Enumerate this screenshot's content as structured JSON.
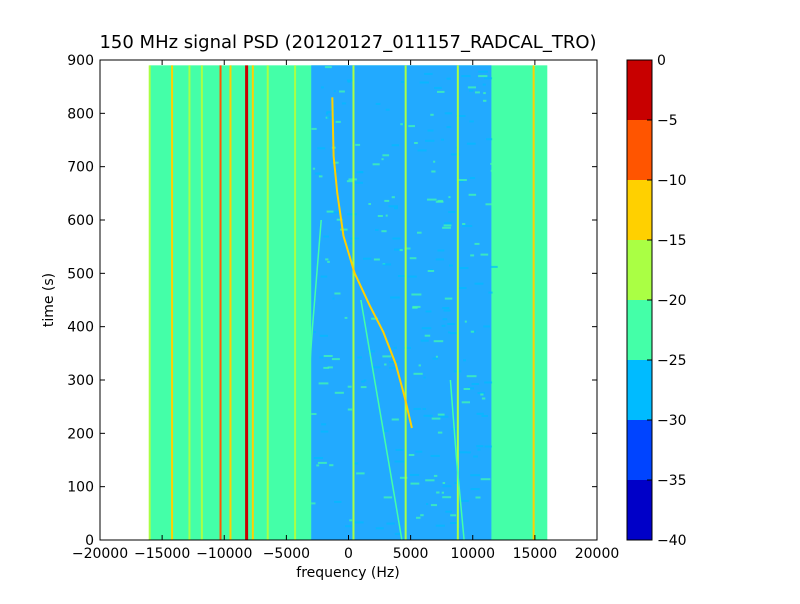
{
  "chart_data": {
    "type": "heatmap",
    "title": "150 MHz signal PSD (20120127_011157_RADCAL_TRO)",
    "xlabel": "frequency (Hz)",
    "ylabel": "time (s)",
    "xlim": [
      -20000,
      20000
    ],
    "ylim": [
      0,
      900
    ],
    "data_extent": {
      "x": [
        -16000,
        16000
      ],
      "y": [
        0,
        890
      ]
    },
    "xticks": [
      -20000,
      -15000,
      -10000,
      -5000,
      0,
      5000,
      10000,
      15000,
      20000
    ],
    "xtick_labels": [
      "−20000",
      "−15000",
      "−10000",
      "−5000",
      "0",
      "5000",
      "10000",
      "15000",
      "20000"
    ],
    "yticks": [
      0,
      100,
      200,
      300,
      400,
      500,
      600,
      700,
      800,
      900
    ],
    "ytick_labels": [
      "0",
      "100",
      "200",
      "300",
      "400",
      "500",
      "600",
      "700",
      "800",
      "900"
    ],
    "colorbar": {
      "levels": [
        -40,
        -35,
        -30,
        -25,
        -20,
        -15,
        -10,
        -5,
        0
      ],
      "tick_labels": [
        "−40",
        "−35",
        "−30",
        "−25",
        "−20",
        "−15",
        "−10",
        "−5",
        "0"
      ],
      "colors": [
        "#0000c8",
        "#0044ff",
        "#00bbff",
        "#44ffa8",
        "#aaff44",
        "#ffd000",
        "#ff5500",
        "#c80000"
      ]
    },
    "background_level_color": "#44ffa8",
    "quiet_band": {
      "x": [
        -3000,
        11500
      ],
      "color": "#22aaff"
    },
    "persistent_lines": [
      {
        "x": -16000,
        "color": "#aaff44"
      },
      {
        "x": -14200,
        "color": "#ffd000"
      },
      {
        "x": -12800,
        "color": "#aaff44"
      },
      {
        "x": -11800,
        "color": "#aaff44"
      },
      {
        "x": -10300,
        "color": "#ff5500"
      },
      {
        "x": -9500,
        "color": "#ffd000"
      },
      {
        "x": -8200,
        "color": "#c80000"
      },
      {
        "x": -7700,
        "color": "#ffd000"
      },
      {
        "x": -6500,
        "color": "#aaff44"
      },
      {
        "x": -4300,
        "color": "#aaff44"
      },
      {
        "x": 400,
        "color": "#aaff44"
      },
      {
        "x": 4600,
        "color": "#aaff44"
      },
      {
        "x": 8800,
        "color": "#aaff44"
      },
      {
        "x": 14900,
        "color": "#ffd000"
      }
    ],
    "drifting_signal": {
      "color": "#ffd000",
      "points": [
        [
          -1300,
          830
        ],
        [
          -1200,
          720
        ],
        [
          -900,
          650
        ],
        [
          -400,
          570
        ],
        [
          500,
          500
        ],
        [
          1700,
          440
        ],
        [
          2800,
          390
        ],
        [
          3800,
          330
        ],
        [
          4500,
          270
        ],
        [
          5100,
          210
        ]
      ]
    },
    "faint_drift_lines": [
      {
        "color": "#44ffa8",
        "points": [
          [
            -4000,
            0
          ],
          [
            -3500,
            200
          ],
          [
            -2900,
            400
          ],
          [
            -2200,
            600
          ]
        ]
      },
      {
        "color": "#44ffa8",
        "points": [
          [
            4300,
            0
          ],
          [
            3200,
            150
          ],
          [
            2100,
            300
          ],
          [
            1000,
            450
          ]
        ]
      },
      {
        "color": "#44ffa8",
        "points": [
          [
            9300,
            0
          ],
          [
            8700,
            150
          ],
          [
            8200,
            300
          ]
        ]
      }
    ]
  }
}
